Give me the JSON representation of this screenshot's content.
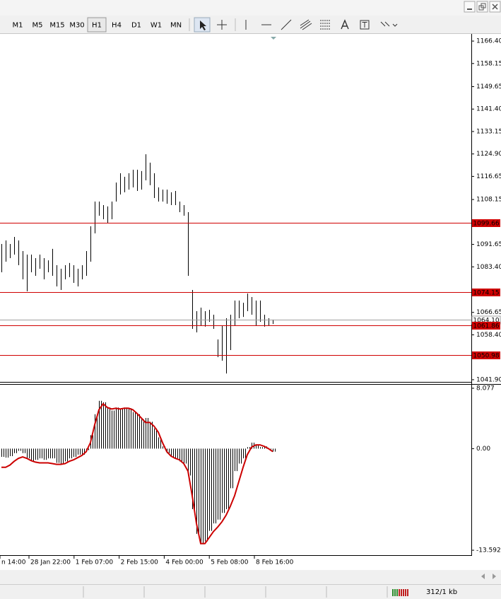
{
  "toolbar": {
    "timeframes": [
      "M1",
      "M5",
      "M15",
      "M30",
      "H1",
      "H4",
      "D1",
      "W1",
      "MN"
    ],
    "selected_index": 4
  },
  "status": {
    "traffic": "312/1 kb"
  },
  "chart_data": [
    {
      "type": "ohlc",
      "color": "#000000",
      "high": [
        1091.8,
        1093.1,
        1091.8,
        1094.4,
        1093.1,
        1089.2,
        1087.9,
        1087.9,
        1086.6,
        1087.9,
        1086.6,
        1085.8,
        1090.0,
        1084.0,
        1082.7,
        1084.0,
        1084.8,
        1084.0,
        1082.7,
        1084.0,
        1089.2,
        1098.3,
        1107.4,
        1107.4,
        1106.1,
        1105.6,
        1107.4,
        1114.4,
        1117.8,
        1116.5,
        1117.8,
        1119.1,
        1119.1,
        1118.6,
        1124.8,
        1121.7,
        1117.8,
        1112.6,
        1111.8,
        1111.8,
        1110.8,
        1111.3,
        1107.4,
        1106.1,
        1103.5,
        1074.9,
        1067.1,
        1068.4,
        1067.1,
        1067.6,
        1065.8,
        1056.7,
        1061.9,
        1064.5,
        1065.8,
        1071.0,
        1071.0,
        1070.2,
        1073.6,
        1072.3,
        1071.0,
        1071.0,
        1065.8,
        1064.5,
        1064.0
      ],
      "low": [
        1081.4,
        1085.3,
        1086.6,
        1087.9,
        1084.0,
        1078.8,
        1074.4,
        1081.4,
        1080.1,
        1082.7,
        1078.8,
        1081.4,
        1080.1,
        1076.2,
        1074.9,
        1078.8,
        1079.6,
        1077.5,
        1076.2,
        1078.8,
        1080.1,
        1085.3,
        1095.7,
        1102.2,
        1100.9,
        1099.6,
        1100.9,
        1107.4,
        1110.0,
        1110.8,
        1111.8,
        1112.6,
        1111.3,
        1111.8,
        1115.2,
        1113.4,
        1108.7,
        1107.4,
        1107.4,
        1106.6,
        1106.1,
        1106.1,
        1103.5,
        1102.2,
        1080.1,
        1060.6,
        1059.3,
        1061.9,
        1061.4,
        1063.2,
        1060.6,
        1050.2,
        1048.9,
        1044.2,
        1052.8,
        1061.9,
        1064.5,
        1065.0,
        1067.1,
        1065.8,
        1061.9,
        1063.2,
        1061.4,
        1061.9,
        1062.4
      ],
      "ylim": [
        1041.1,
        1168.5
      ],
      "yticks": [
        {
          "value": 1166.4,
          "label": "1166.40"
        },
        1158.15,
        1149.65,
        {
          "value": 1141.4,
          "label": "1141.40"
        },
        1133.15,
        {
          "value": 1124.9,
          "label": "1124.90"
        },
        1116.65,
        1108.15,
        1091.65,
        {
          "value": 1083.4,
          "label": "1083.40"
        },
        1066.65,
        {
          "value": 1058.4,
          "label": "1058.40"
        },
        {
          "value": 1041.9,
          "label": "1041.90"
        }
      ],
      "levels": [
        1099.66,
        1074.15,
        {
          "value": 1064.1,
          "label": "1064.10"
        },
        1061.86,
        1050.98
      ],
      "level_colors": [
        "#d00000",
        "#d00000",
        "#a0a0a0",
        "#d00000",
        "#d00000"
      ],
      "time_labels": [
        "n 14:00",
        "28 Jan 22:00",
        "1 Feb 07:00",
        "2 Feb 15:00",
        "4 Feb 00:00",
        "5 Feb 08:00",
        "8 Feb 16:00"
      ]
    },
    {
      "type": "macd",
      "series": [
        {
          "color": "#000000",
          "values": [
            -1.1,
            -1.2,
            -1.0,
            -0.6,
            -0.3,
            -0.6,
            -1.3,
            -1.7,
            -1.5,
            -1.3,
            -1.5,
            -1.3,
            -1.3,
            -1.9,
            -2.1,
            -1.7,
            -1.3,
            -1.1,
            -0.8,
            -0.8,
            -0.2,
            1.8,
            4.6,
            6.4,
            6.2,
            5.5,
            5.1,
            5.5,
            5.3,
            5.5,
            5.4,
            4.9,
            4.6,
            3.9,
            4.1,
            3.6,
            2.7,
            1.5,
            0.3,
            -0.6,
            -1.1,
            -1.3,
            -1.7,
            -2.0,
            -3.6,
            -8.1,
            -11.4,
            -12.8,
            -12.4,
            -11.0,
            -10.0,
            -9.5,
            -8.6,
            -8.1,
            -5.3,
            -3.0,
            -2.0,
            -1.3,
            0.2,
            0.8,
            0.5,
            0.2,
            0.3,
            -0.1,
            -0.4
          ]
        },
        {
          "color": "#cc0000",
          "values": [
            -2.5,
            -2.5,
            -2.2,
            -1.7,
            -1.3,
            -1.1,
            -1.3,
            -1.6,
            -1.8,
            -1.9,
            -1.9,
            -1.9,
            -2.0,
            -2.1,
            -2.1,
            -2.0,
            -1.7,
            -1.5,
            -1.2,
            -0.9,
            -0.4,
            0.8,
            3.2,
            5.2,
            6.0,
            5.5,
            5.3,
            5.4,
            5.3,
            5.4,
            5.4,
            5.2,
            4.7,
            4.1,
            3.5,
            3.5,
            3.0,
            2.2,
            0.8,
            -0.4,
            -1.0,
            -1.3,
            -1.5,
            -2.0,
            -3.0,
            -6.3,
            -10.0,
            -12.7,
            -12.7,
            -11.9,
            -11.1,
            -10.5,
            -9.8,
            -8.9,
            -7.7,
            -6.3,
            -4.4,
            -2.5,
            -0.8,
            0.2,
            0.5,
            0.5,
            0.3,
            0.0,
            -0.4
          ]
        }
      ],
      "ylim": [
        -14.25,
        8.55
      ],
      "yticks": [
        8.077,
        {
          "value": 0,
          "label": "0.00"
        },
        -13.592
      ]
    }
  ]
}
